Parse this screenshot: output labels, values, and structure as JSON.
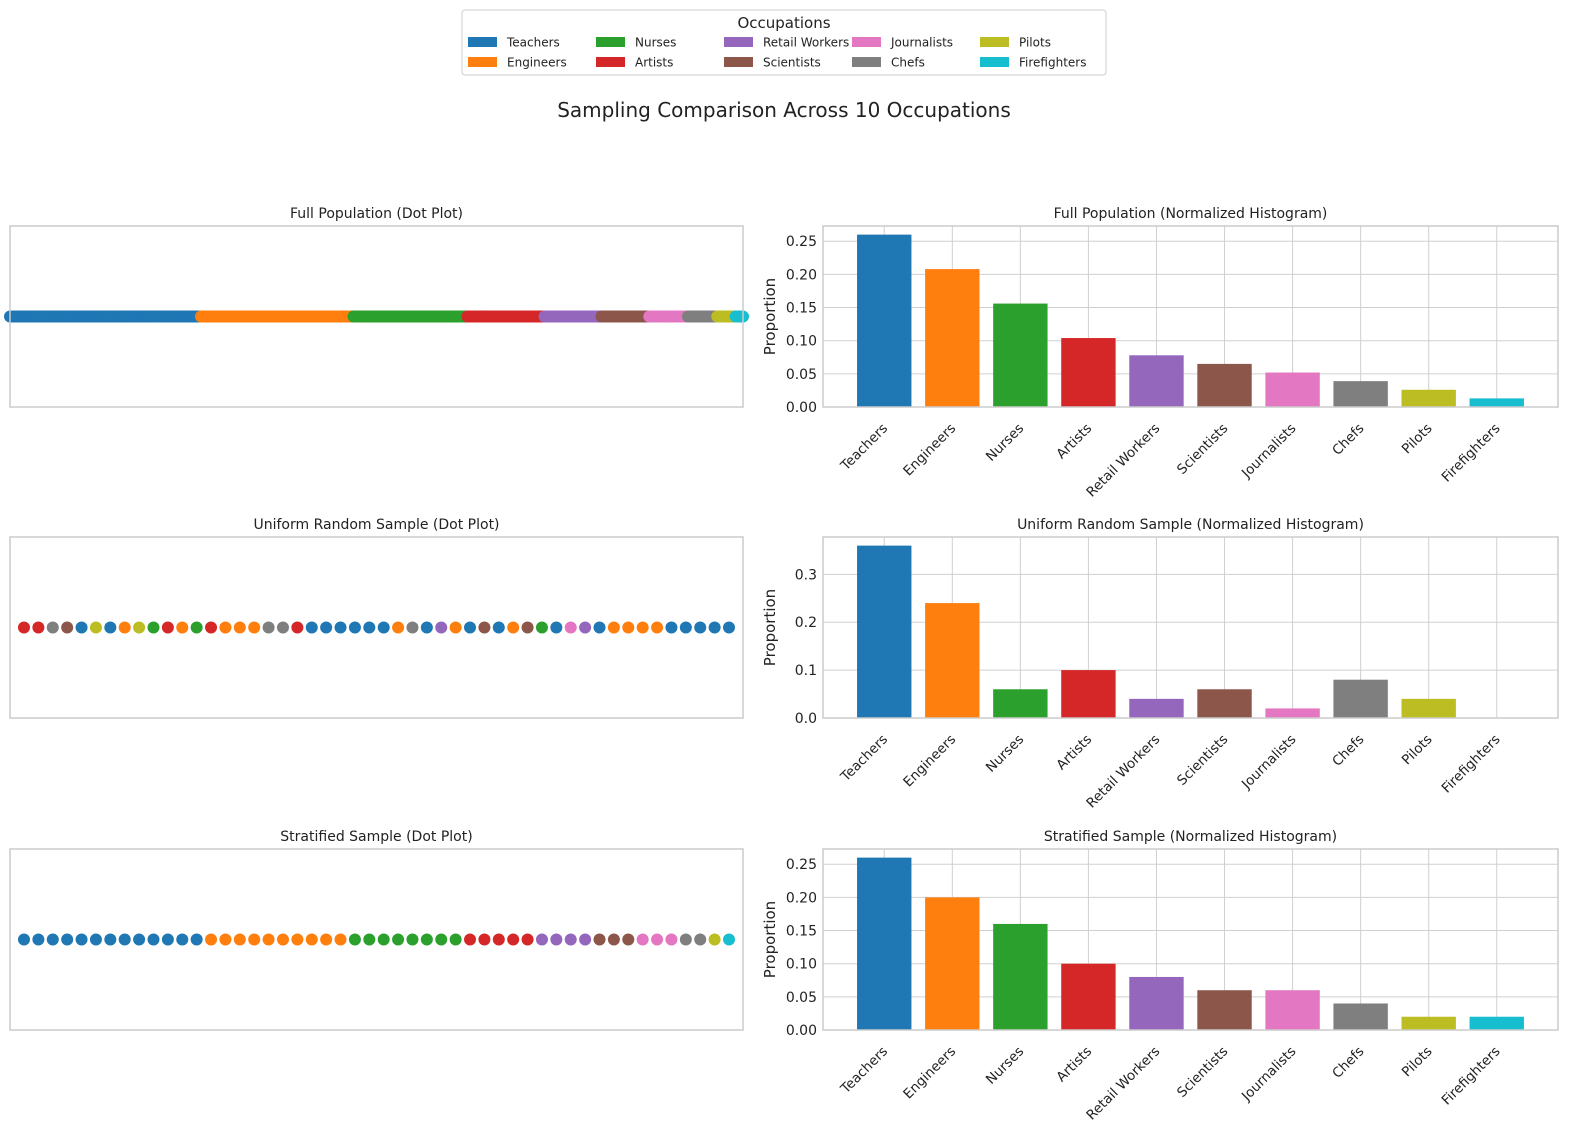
{
  "title": "Sampling Comparison Across 10 Occupations",
  "legend": {
    "title": "Occupations",
    "placement": "top-center",
    "columns": 5
  },
  "categories": [
    "Teachers",
    "Engineers",
    "Nurses",
    "Artists",
    "Retail Workers",
    "Scientists",
    "Journalists",
    "Chefs",
    "Pilots",
    "Firefighters"
  ],
  "colors": [
    "#1f77b4",
    "#ff7f0e",
    "#2ca02c",
    "#d62728",
    "#9467bd",
    "#8c564b",
    "#e377c2",
    "#7f7f7f",
    "#bcbd22",
    "#17becf"
  ],
  "chart_data": [
    {
      "type": "scatter",
      "title": "Full Population (Dot Plot)",
      "note_kind": "dot-plot",
      "proportions": [
        0.26,
        0.208,
        0.156,
        0.104,
        0.078,
        0.065,
        0.052,
        0.039,
        0.026,
        0.013
      ]
    },
    {
      "type": "bar",
      "title": "Full Population (Normalized Histogram)",
      "ylabel": "Proportion",
      "ylim": [
        0,
        0.273
      ],
      "yticks": [
        "0.00",
        "0.05",
        "0.10",
        "0.15",
        "0.20",
        "0.25"
      ],
      "ytick_values": [
        0,
        0.05,
        0.1,
        0.15,
        0.2,
        0.25
      ],
      "values": [
        0.26,
        0.208,
        0.156,
        0.104,
        0.078,
        0.065,
        0.052,
        0.039,
        0.026,
        0.013
      ],
      "grid": true
    },
    {
      "type": "scatter",
      "title": "Uniform Random Sample (Dot Plot)",
      "sequence": [
        3,
        3,
        7,
        5,
        0,
        8,
        0,
        1,
        8,
        2,
        3,
        1,
        2,
        3,
        1,
        1,
        1,
        7,
        7,
        3,
        0,
        0,
        0,
        0,
        0,
        0,
        1,
        7,
        0,
        4,
        1,
        0,
        5,
        0,
        1,
        5,
        2,
        0,
        6,
        4,
        0,
        1,
        1,
        1,
        1,
        0,
        0,
        0,
        0,
        0
      ]
    },
    {
      "type": "bar",
      "title": "Uniform Random Sample (Normalized Histogram)",
      "ylabel": "Proportion",
      "ylim": [
        0,
        0.378
      ],
      "yticks": [
        "0.0",
        "0.1",
        "0.2",
        "0.3"
      ],
      "ytick_values": [
        0,
        0.1,
        0.2,
        0.3
      ],
      "values": [
        0.36,
        0.24,
        0.06,
        0.1,
        0.04,
        0.06,
        0.02,
        0.08,
        0.04,
        0.0
      ],
      "grid": true
    },
    {
      "type": "scatter",
      "title": "Stratified Sample (Dot Plot)",
      "sequence": [
        0,
        0,
        0,
        0,
        0,
        0,
        0,
        0,
        0,
        0,
        0,
        0,
        0,
        1,
        1,
        1,
        1,
        1,
        1,
        1,
        1,
        1,
        1,
        2,
        2,
        2,
        2,
        2,
        2,
        2,
        2,
        3,
        3,
        3,
        3,
        3,
        4,
        4,
        4,
        4,
        5,
        5,
        5,
        6,
        6,
        6,
        7,
        7,
        8,
        9
      ]
    },
    {
      "type": "bar",
      "title": "Stratified Sample (Normalized Histogram)",
      "ylabel": "Proportion",
      "ylim": [
        0,
        0.273
      ],
      "yticks": [
        "0.00",
        "0.05",
        "0.10",
        "0.15",
        "0.20",
        "0.25"
      ],
      "ytick_values": [
        0,
        0.05,
        0.1,
        0.15,
        0.2,
        0.25
      ],
      "values": [
        0.26,
        0.2,
        0.16,
        0.1,
        0.08,
        0.06,
        0.06,
        0.04,
        0.02,
        0.02
      ],
      "grid": true
    }
  ]
}
